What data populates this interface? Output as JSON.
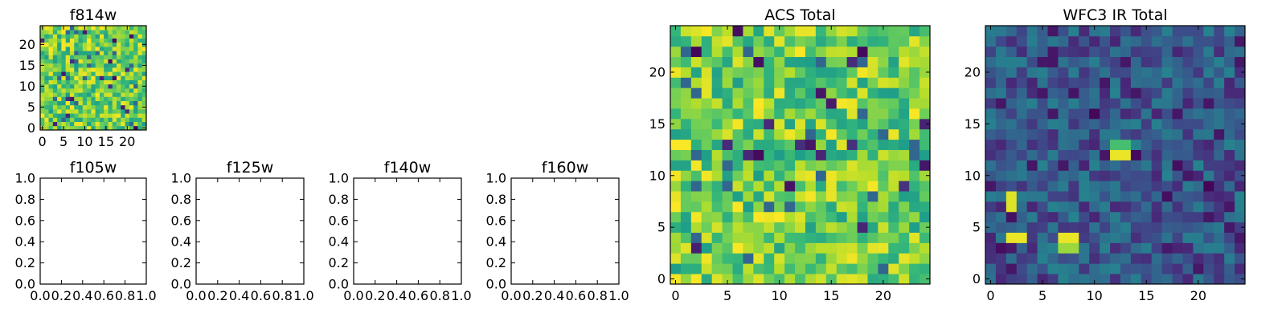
{
  "chart_data": [
    {
      "type": "heatmap",
      "title": "f814w",
      "xticks": [
        "0",
        "5",
        "10",
        "15",
        "20"
      ],
      "yticks": [
        "0",
        "5",
        "10",
        "15",
        "20"
      ],
      "xlim": [
        -0.5,
        24.5
      ],
      "ylim": [
        -0.5,
        24.5
      ],
      "colormap": "viridis",
      "grid_size": [
        25,
        25
      ],
      "values_note": "per-pixel intensities not readable; mostly green-yellow with scattered dark pixels",
      "intensity_range": [
        0.55,
        1.0
      ]
    },
    {
      "type": "empty",
      "title": "f105w",
      "xticks": [
        "0.0",
        "0.2",
        "0.4",
        "0.6",
        "0.8",
        "1.0"
      ],
      "yticks": [
        "0.0",
        "0.2",
        "0.4",
        "0.6",
        "0.8",
        "1.0"
      ],
      "xlim": [
        0,
        1
      ],
      "ylim": [
        0,
        1
      ]
    },
    {
      "type": "empty",
      "title": "f125w",
      "xticks": [
        "0.0",
        "0.2",
        "0.4",
        "0.6",
        "0.8",
        "1.0"
      ],
      "yticks": [
        "0.0",
        "0.2",
        "0.4",
        "0.6",
        "0.8",
        "1.0"
      ],
      "xlim": [
        0,
        1
      ],
      "ylim": [
        0,
        1
      ]
    },
    {
      "type": "empty",
      "title": "f140w",
      "xticks": [
        "0.0",
        "0.2",
        "0.4",
        "0.6",
        "0.8",
        "1.0"
      ],
      "yticks": [
        "0.0",
        "0.2",
        "0.4",
        "0.6",
        "0.8",
        "1.0"
      ],
      "xlim": [
        0,
        1
      ],
      "ylim": [
        0,
        1
      ]
    },
    {
      "type": "empty",
      "title": "f160w",
      "xticks": [
        "0.0",
        "0.2",
        "0.4",
        "0.6",
        "0.8",
        "1.0"
      ],
      "yticks": [
        "0.0",
        "0.2",
        "0.4",
        "0.6",
        "0.8",
        "1.0"
      ],
      "xlim": [
        0,
        1
      ],
      "ylim": [
        0,
        1
      ]
    },
    {
      "type": "heatmap",
      "title": "ACS Total",
      "xticks": [
        "0",
        "5",
        "10",
        "15",
        "20"
      ],
      "yticks": [
        "0",
        "5",
        "10",
        "15",
        "20"
      ],
      "xlim": [
        -0.5,
        24.5
      ],
      "ylim": [
        -0.5,
        24.5
      ],
      "colormap": "viridis",
      "grid_size": [
        25,
        25
      ],
      "values_note": "per-pixel intensities not readable; mostly green-yellow with scattered dark pixels",
      "intensity_range": [
        0.55,
        1.0
      ]
    },
    {
      "type": "heatmap",
      "title": "WFC3 IR Total",
      "xticks": [
        "0",
        "5",
        "10",
        "15",
        "20"
      ],
      "yticks": [
        "0",
        "5",
        "10",
        "15",
        "20"
      ],
      "xlim": [
        -0.5,
        24.5
      ],
      "ylim": [
        -0.5,
        24.5
      ],
      "colormap": "viridis",
      "grid_size": [
        25,
        25
      ],
      "values_note": "per-pixel intensities not readable; mostly dark blue with a few bright pixels",
      "intensity_range": [
        0.1,
        0.45
      ],
      "bright_cells": [
        {
          "x": 2,
          "y": 7,
          "value": 0.95
        },
        {
          "x": 2,
          "y": 8,
          "value": 0.95
        },
        {
          "x": 2,
          "y": 4,
          "value": 0.97
        },
        {
          "x": 3,
          "y": 4,
          "value": 0.97
        },
        {
          "x": 7,
          "y": 4,
          "value": 0.97
        },
        {
          "x": 8,
          "y": 4,
          "value": 0.97
        },
        {
          "x": 7,
          "y": 3,
          "value": 0.85
        },
        {
          "x": 8,
          "y": 3,
          "value": 0.85
        },
        {
          "x": 12,
          "y": 12,
          "value": 0.97
        },
        {
          "x": 13,
          "y": 12,
          "value": 0.97
        },
        {
          "x": 12,
          "y": 13,
          "value": 0.7
        },
        {
          "x": 13,
          "y": 13,
          "value": 0.7
        }
      ]
    }
  ]
}
